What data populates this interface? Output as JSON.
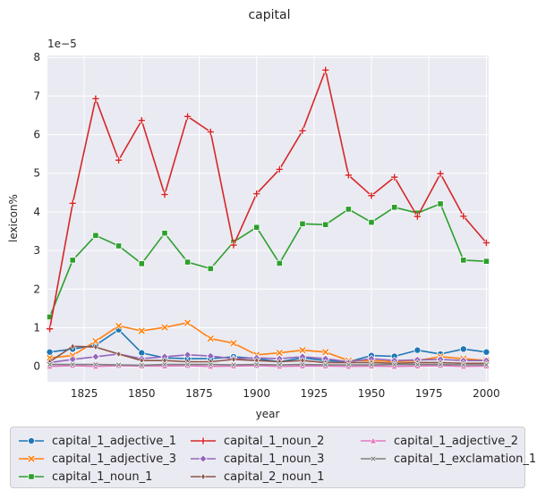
{
  "chart_data": {
    "type": "line",
    "title": "capital",
    "xlabel": "year",
    "ylabel": "lexicon%",
    "offset_text": "1e−5",
    "x": [
      1810,
      1820,
      1830,
      1840,
      1850,
      1860,
      1870,
      1880,
      1890,
      1900,
      1910,
      1920,
      1930,
      1940,
      1950,
      1960,
      1970,
      1980,
      1990,
      2000
    ],
    "xlim": [
      1809,
      2001
    ],
    "ylim": [
      -0.4,
      8.05
    ],
    "x_ticks": [
      1825,
      1850,
      1875,
      1900,
      1925,
      1950,
      1975,
      2000
    ],
    "y_ticks": [
      0,
      1,
      2,
      3,
      4,
      5,
      6,
      7,
      8
    ],
    "y_unit_scale": "1e-5",
    "grid": true,
    "legend_position": "bottom, outside plot",
    "series": [
      {
        "name": "capital_1_adjective_1",
        "color": "#1f77b4",
        "marker": "circle",
        "values": [
          0.37,
          0.45,
          0.55,
          0.95,
          0.35,
          0.22,
          0.2,
          0.2,
          0.25,
          0.2,
          0.12,
          0.22,
          0.15,
          0.12,
          0.28,
          0.26,
          0.42,
          0.32,
          0.45,
          0.37
        ]
      },
      {
        "name": "capital_1_adjective_3",
        "color": "#ff7f0e",
        "marker": "x",
        "values": [
          0.22,
          0.28,
          0.65,
          1.05,
          0.92,
          1.01,
          1.13,
          0.72,
          0.6,
          0.3,
          0.35,
          0.42,
          0.37,
          0.15,
          0.15,
          0.12,
          0.15,
          0.25,
          0.2,
          0.15
        ]
      },
      {
        "name": "capital_1_noun_1",
        "color": "#2ca02c",
        "marker": "square",
        "values": [
          1.28,
          2.75,
          3.39,
          3.12,
          2.66,
          3.45,
          2.7,
          2.53,
          3.22,
          3.6,
          2.67,
          3.69,
          3.67,
          4.07,
          3.73,
          4.12,
          3.97,
          4.21,
          2.75,
          2.72
        ]
      },
      {
        "name": "capital_1_noun_2",
        "color": "#d62728",
        "marker": "plus",
        "values": [
          0.97,
          4.22,
          6.93,
          5.34,
          6.37,
          4.45,
          6.47,
          6.07,
          3.14,
          4.47,
          5.1,
          6.1,
          7.67,
          4.95,
          4.42,
          4.9,
          3.88,
          4.99,
          3.89,
          3.2
        ]
      },
      {
        "name": "capital_1_noun_3",
        "color": "#9467bd",
        "marker": "diamond",
        "values": [
          0.1,
          0.18,
          0.25,
          0.32,
          0.2,
          0.25,
          0.3,
          0.27,
          0.2,
          0.22,
          0.2,
          0.25,
          0.2,
          0.12,
          0.2,
          0.15,
          0.17,
          0.18,
          0.15,
          0.15
        ]
      },
      {
        "name": "capital_2_noun_1",
        "color": "#8c564b",
        "marker": "thin-diamond",
        "values": [
          0.12,
          0.52,
          0.5,
          0.32,
          0.15,
          0.15,
          0.12,
          0.12,
          0.18,
          0.15,
          0.12,
          0.15,
          0.1,
          0.1,
          0.1,
          0.08,
          0.1,
          0.1,
          0.08,
          0.08
        ]
      },
      {
        "name": "capital_1_adjective_2",
        "color": "#e377c2",
        "marker": "triangle",
        "values": [
          0.0,
          0.02,
          0.0,
          0.02,
          0.01,
          0.01,
          0.02,
          0.0,
          0.01,
          0.02,
          0.0,
          0.01,
          0.01,
          0.0,
          0.01,
          0.0,
          0.01,
          0.02,
          0.0,
          0.01
        ]
      },
      {
        "name": "capital_1_exclamation_1",
        "color": "#7f7f7f",
        "marker": "small-x",
        "values": [
          0.05,
          0.05,
          0.05,
          0.04,
          0.03,
          0.05,
          0.05,
          0.05,
          0.04,
          0.05,
          0.04,
          0.05,
          0.04,
          0.04,
          0.04,
          0.05,
          0.05,
          0.05,
          0.04,
          0.04
        ]
      }
    ]
  }
}
